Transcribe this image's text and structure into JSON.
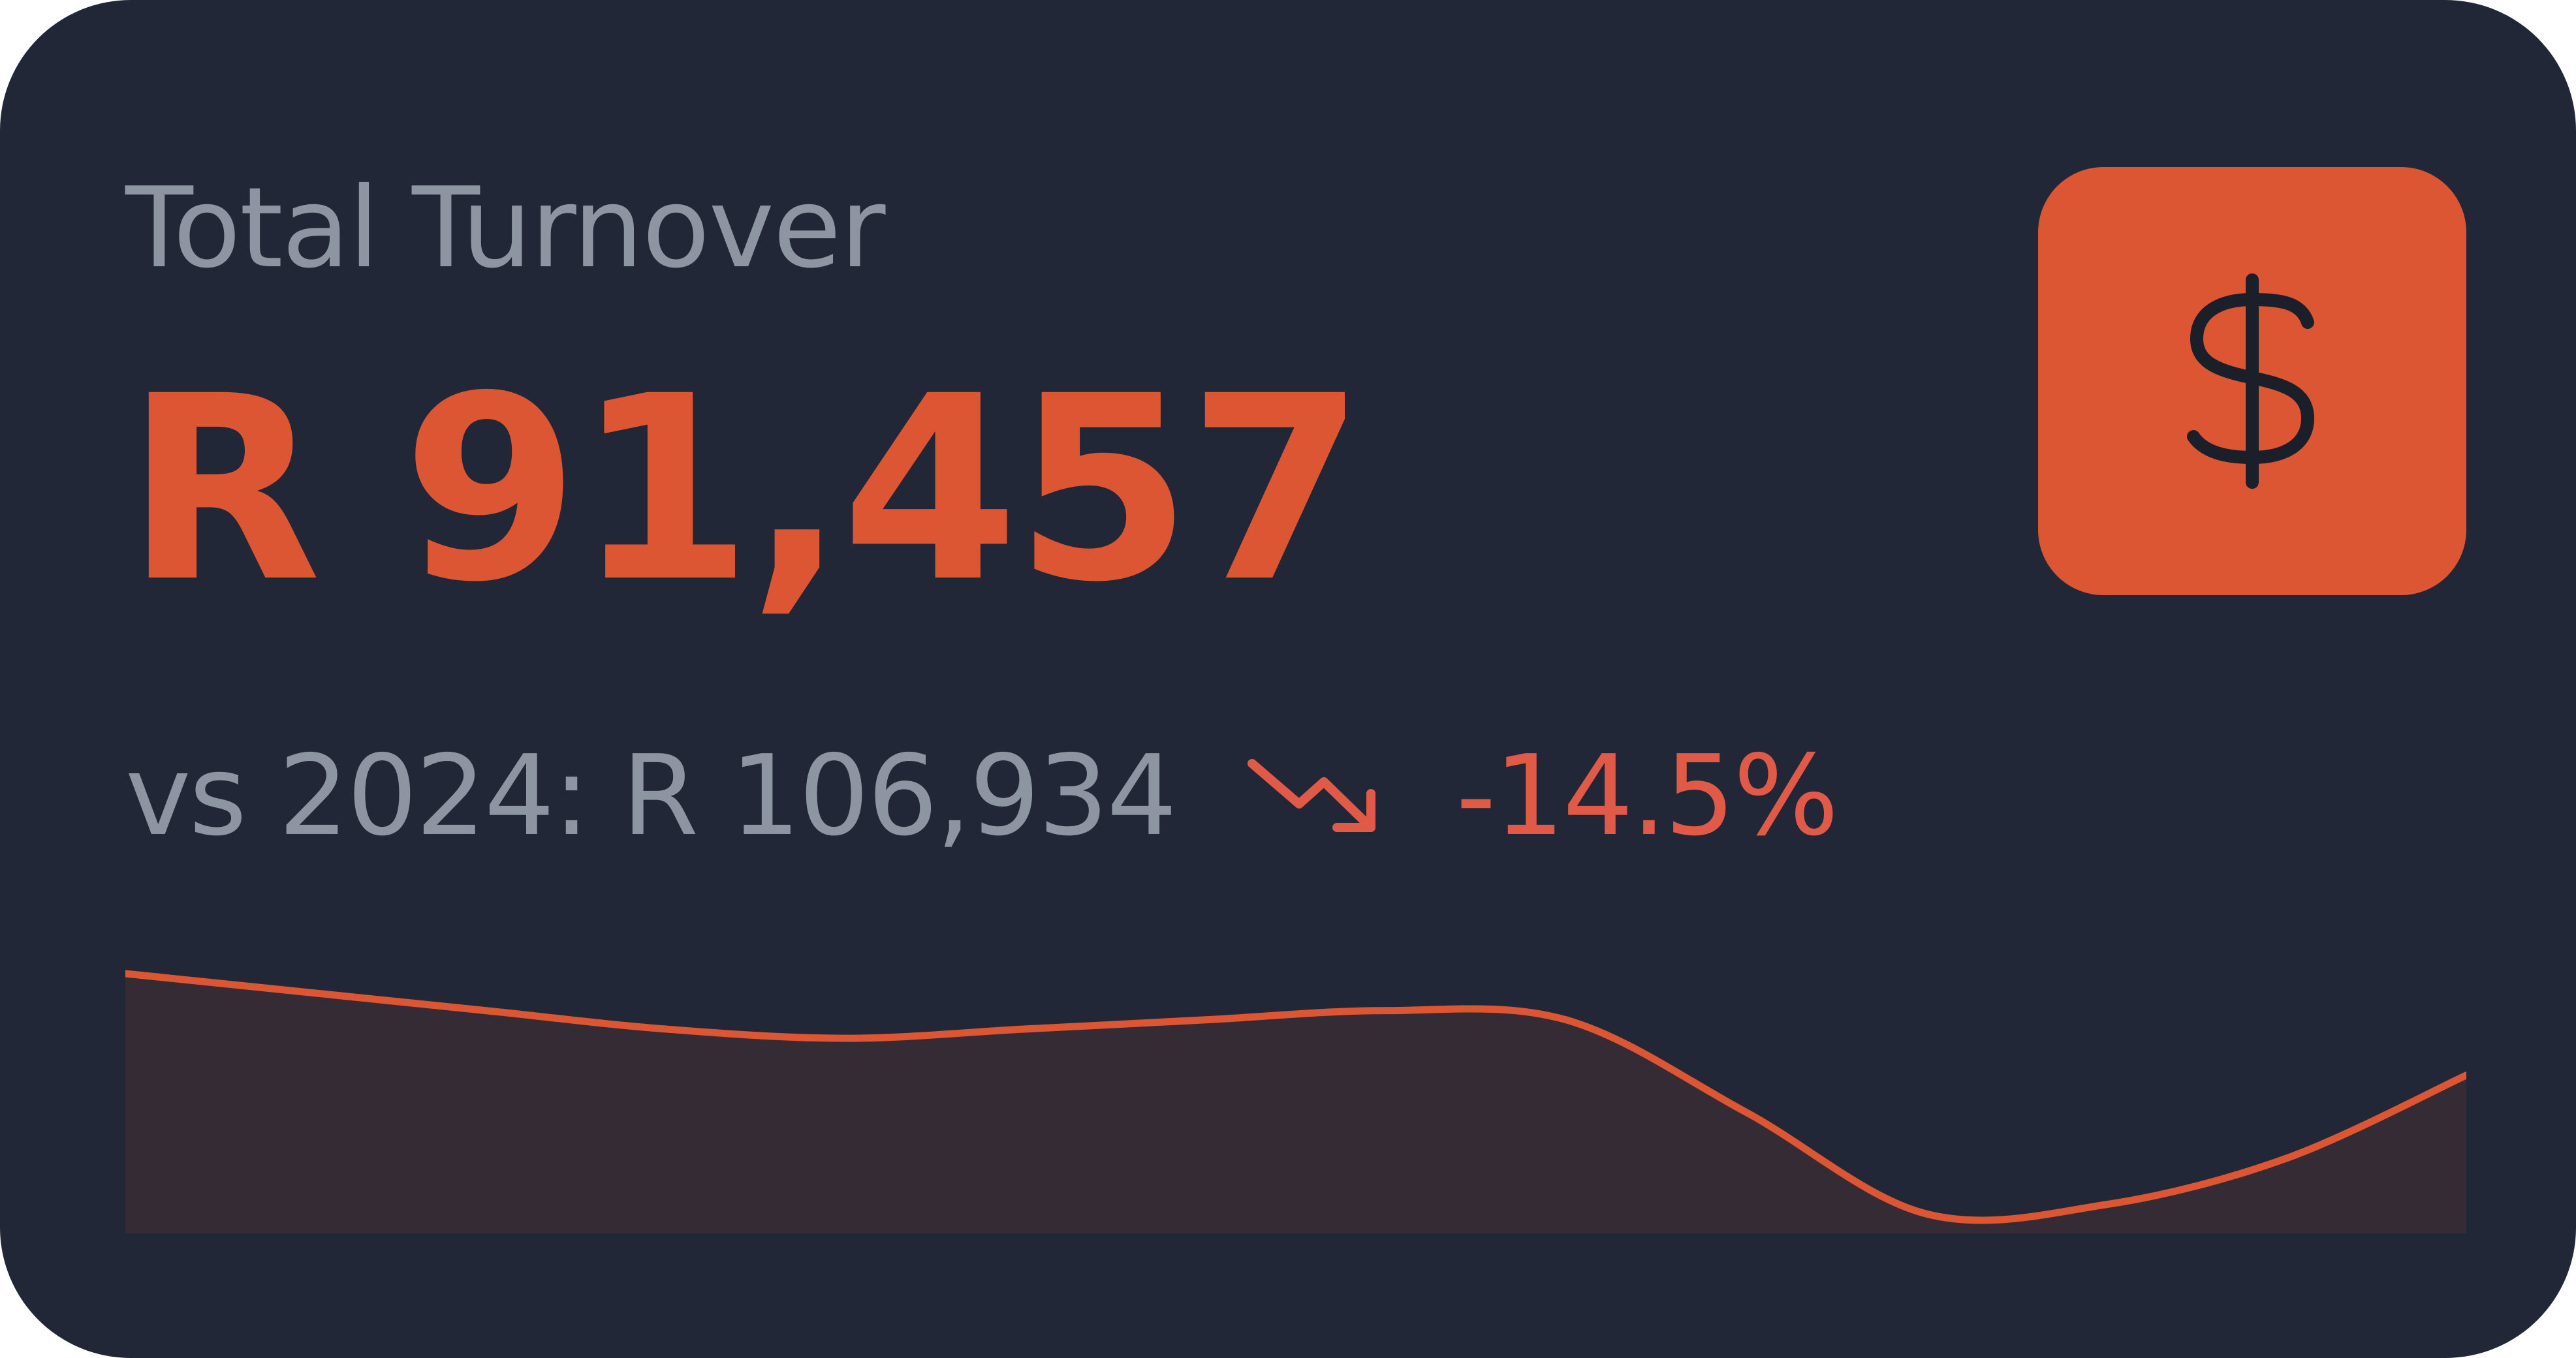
{
  "card": {
    "title": "Total Turnover",
    "value": "R 91,457",
    "comparison": "vs 2024: R 106,934",
    "change": "-14.5%",
    "trend_direction": "down",
    "icon": "dollar-icon",
    "trend_icon": "trending-down-icon"
  },
  "colors": {
    "background": "#212736",
    "accent": "#dd5633",
    "negative": "#e05a47",
    "muted_text": "#8e95a2",
    "sparkline_fill": "#352b34"
  },
  "sparkline": {
    "values": [
      100,
      98,
      96,
      94,
      93,
      94,
      95,
      96,
      95,
      85,
      74,
      75,
      80,
      89
    ]
  }
}
